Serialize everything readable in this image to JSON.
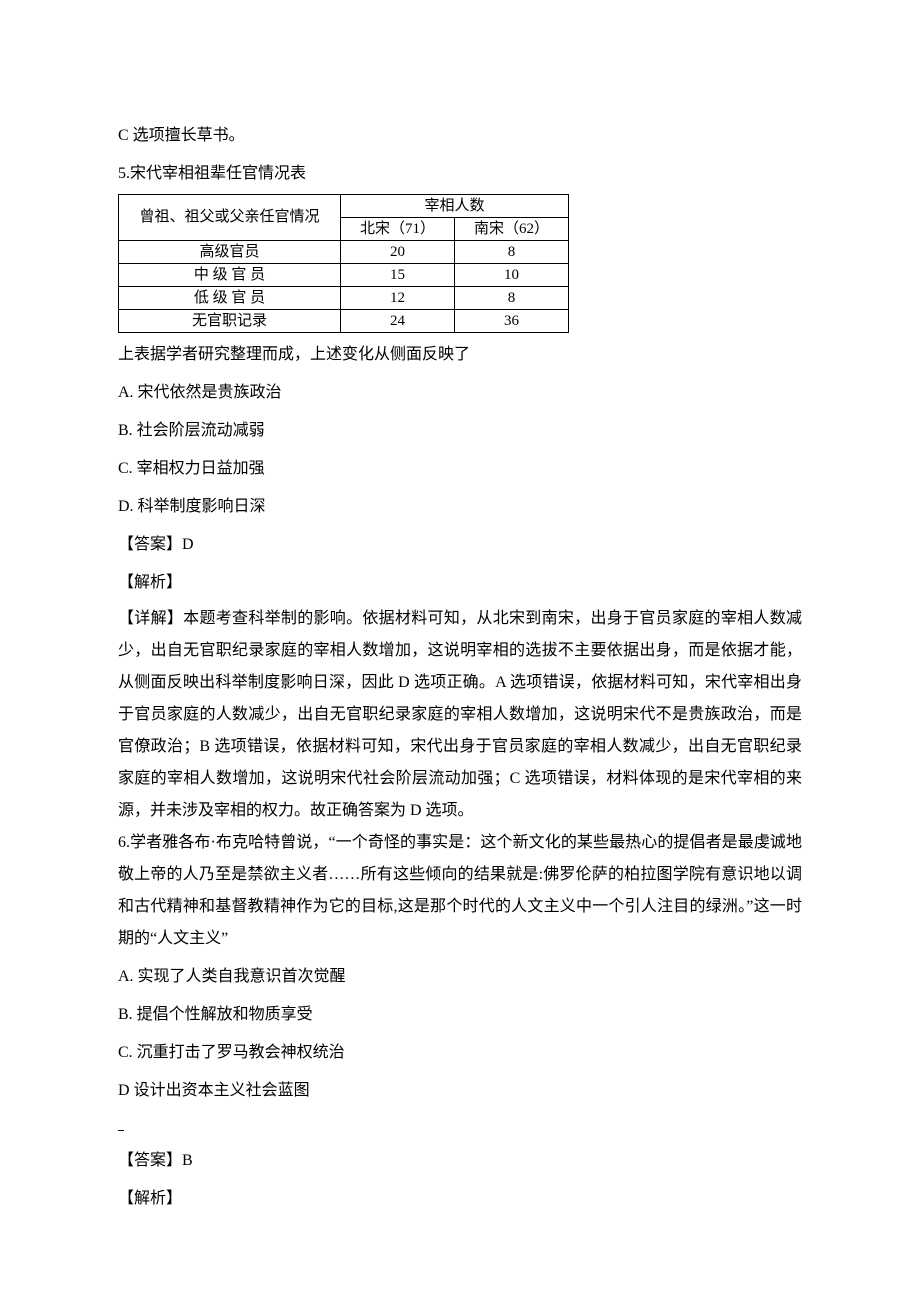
{
  "pre_text": "C 选项擅长草书。",
  "q5": {
    "number": "5.",
    "title": "宋代宰相祖辈任官情况表",
    "table": {
      "header_row1_col1": "曾祖、祖父或父亲任官情况",
      "header_row1_col23": "宰相人数",
      "header_row2_col2": "北宋（71）",
      "header_row2_col3": "南宋（62）",
      "rows": [
        {
          "label": "高级官员",
          "b": "20",
          "c": "8"
        },
        {
          "label": "中 级 官 员",
          "b": "15",
          "c": "10"
        },
        {
          "label": "低 级 官 员",
          "b": "12",
          "c": "8"
        },
        {
          "label": "无官职记录",
          "b": "24",
          "c": "36"
        }
      ]
    },
    "after_table": "上表据学者研究整理而成，上述变化从侧面反映了",
    "options": {
      "A": "A.  宋代依然是贵族政治",
      "B": "B.  社会阶层流动减弱",
      "C": "C.  宰相权力日益加强",
      "D": "D.  科举制度影响日深"
    },
    "answer_label": "【答案】D",
    "jiexi_label": "【解析】",
    "detail": "【详解】本题考查科举制的影响。依据材料可知，从北宋到南宋，出身于官员家庭的宰相人数减少，出自无官职纪录家庭的宰相人数增加，这说明宰相的选拔不主要依据出身，而是依据才能，从侧面反映出科举制度影响日深，因此 D 选项正确。A 选项错误，依据材料可知，宋代宰相出身于官员家庭的人数减少，出自无官职纪录家庭的宰相人数增加，这说明宋代不是贵族政治，而是官僚政治；B 选项错误，依据材料可知，宋代出身于官员家庭的宰相人数减少，出自无官职纪录家庭的宰相人数增加，这说明宋代社会阶层流动加强；C 选项错误，材料体现的是宋代宰相的来源，并未涉及宰相的权力。故正确答案为 D 选项。"
  },
  "q6": {
    "number": "6.",
    "stem": "学者雅各布·布克哈特曾说，“一个奇怪的事实是：这个新文化的某些最热心的提倡者是最虔诚地敬上帝的人乃至是禁欲主义者……所有这些倾向的结果就是:佛罗伦萨的柏拉图学院有意识地以调和古代精神和基督教精神作为它的目标,这是那个时代的人文主义中一个引人注目的绿洲。”这一时期的“人文主义”",
    "options": {
      "A": "A.  实现了人类自我意识首次觉醒",
      "B": "B.  提倡个性解放和物质享受",
      "C": "C.  沉重打击了罗马教会神权统治",
      "D_prefix": "D",
      "D_text": "  设计出资本主义社会蓝图"
    },
    "answer_label": "【答案】B",
    "jiexi_label": "【解析】"
  }
}
